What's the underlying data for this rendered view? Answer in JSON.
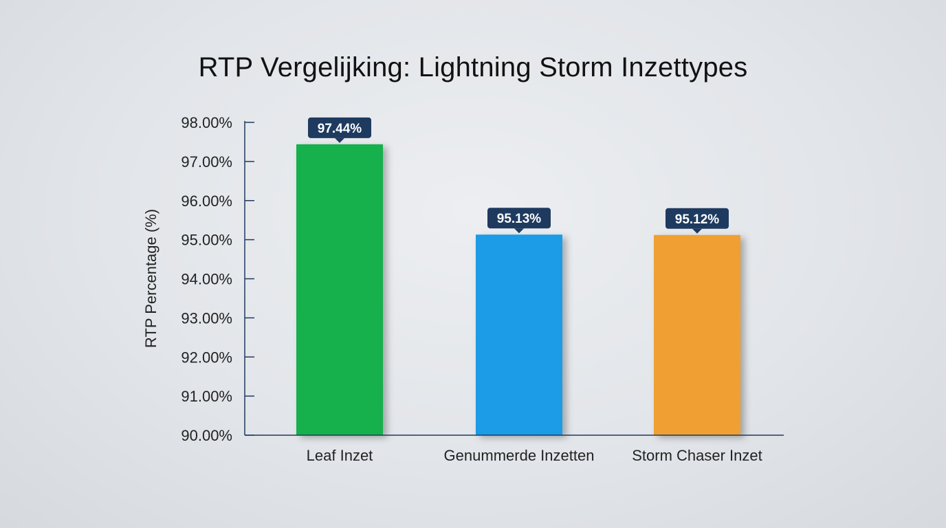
{
  "chart_data": {
    "type": "bar",
    "title": "RTP Vergelijking: Lightning Storm Inzettypes",
    "xlabel": "",
    "ylabel": "RTP Percentage (%)",
    "ylim": [
      90,
      98
    ],
    "yticks": [
      90,
      91,
      92,
      93,
      94,
      95,
      96,
      97,
      98
    ],
    "ytick_labels": [
      "90.00%",
      "91.00%",
      "92.00%",
      "93.00%",
      "94.00%",
      "95.00%",
      "96.00%",
      "97.00%",
      "98.00%"
    ],
    "categories": [
      "Leaf Inzet",
      "Genummerde Inzetten",
      "Storm Chaser Inzet"
    ],
    "values": [
      97.44,
      95.13,
      95.12
    ],
    "data_labels": [
      "97.44%",
      "95.13%",
      "95.12%"
    ],
    "bar_colors": [
      "#14b04e",
      "#1b9be6",
      "#f0a030"
    ],
    "label_bg_color": "#1e3a5f",
    "axis_color": "#1e3a5f",
    "grid": false,
    "legend": "none"
  }
}
